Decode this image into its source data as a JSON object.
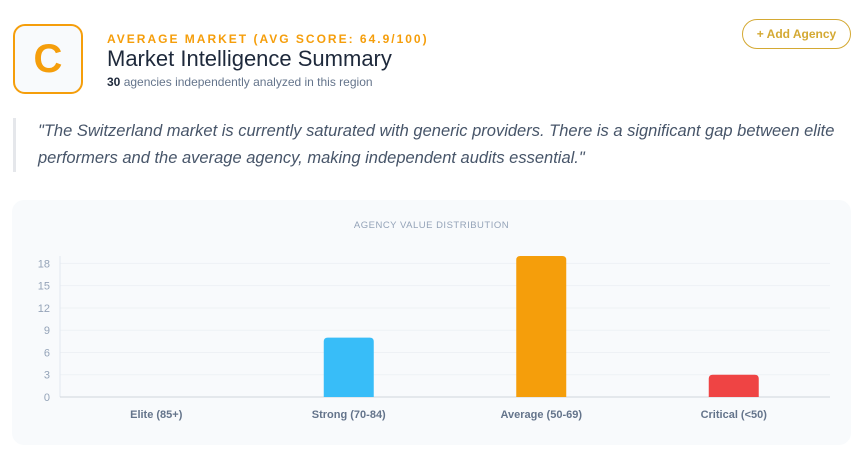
{
  "header": {
    "grade": "C",
    "kicker": "AVERAGE MARKET (AVG SCORE: 64.9/100)",
    "title": "Market Intelligence Summary",
    "agency_count": "30",
    "subtitle_rest": " agencies independently analyzed in this region",
    "add_button": "+ Add Agency",
    "accent": "#f59e0b"
  },
  "quote": "\"The Switzerland market is currently saturated with generic providers. There is a significant gap between elite performers and the average agency, making independent audits essential.\"",
  "chart_data": {
    "type": "bar",
    "title": "AGENCY VALUE DISTRIBUTION",
    "categories": [
      "Elite (85+)",
      "Strong (70-84)",
      "Average (50-69)",
      "Critical (<50)"
    ],
    "values": [
      0,
      8,
      19,
      3
    ],
    "colors": [
      "#22c55e",
      "#38bdf8",
      "#f59e0b",
      "#ef4444"
    ],
    "yticks": [
      0,
      3,
      6,
      9,
      12,
      15,
      18
    ],
    "ylim": [
      0,
      19
    ],
    "grid": true,
    "legend": "none"
  }
}
